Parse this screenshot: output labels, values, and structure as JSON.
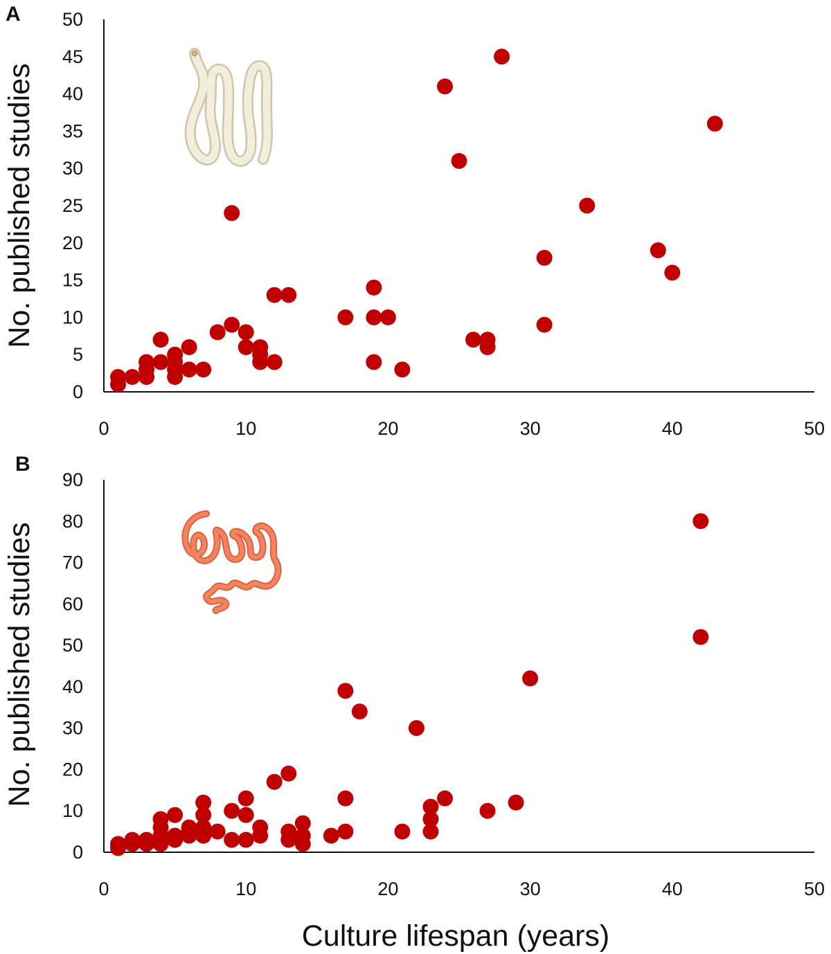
{
  "figure": {
    "xlabel": "Culture lifespan (years)",
    "ylabel": "No. published studies",
    "point_color": "#C00000"
  },
  "chart_data": [
    {
      "panel": "A",
      "type": "scatter",
      "xlabel": "",
      "ylabel": "No. published studies",
      "xlim": [
        0,
        50
      ],
      "ylim": [
        0,
        50
      ],
      "xticks": [
        0,
        10,
        20,
        30,
        40,
        50
      ],
      "yticks": [
        0,
        5,
        10,
        15,
        20,
        25,
        30,
        35,
        40,
        45,
        50
      ],
      "icon": "tapeworm-icon",
      "icon_color": "#F3EEDC",
      "grid": false,
      "points": [
        {
          "x": 1,
          "y": 1
        },
        {
          "x": 1,
          "y": 2
        },
        {
          "x": 2,
          "y": 2
        },
        {
          "x": 3,
          "y": 2
        },
        {
          "x": 3,
          "y": 3
        },
        {
          "x": 3,
          "y": 4
        },
        {
          "x": 4,
          "y": 4
        },
        {
          "x": 4,
          "y": 7
        },
        {
          "x": 5,
          "y": 2
        },
        {
          "x": 5,
          "y": 3
        },
        {
          "x": 5,
          "y": 4
        },
        {
          "x": 5,
          "y": 5
        },
        {
          "x": 6,
          "y": 3
        },
        {
          "x": 6,
          "y": 6
        },
        {
          "x": 7,
          "y": 3
        },
        {
          "x": 8,
          "y": 8
        },
        {
          "x": 9,
          "y": 9
        },
        {
          "x": 9,
          "y": 24
        },
        {
          "x": 10,
          "y": 6
        },
        {
          "x": 10,
          "y": 8
        },
        {
          "x": 11,
          "y": 4
        },
        {
          "x": 11,
          "y": 5
        },
        {
          "x": 11,
          "y": 6
        },
        {
          "x": 12,
          "y": 4
        },
        {
          "x": 12,
          "y": 13
        },
        {
          "x": 13,
          "y": 13
        },
        {
          "x": 17,
          "y": 10
        },
        {
          "x": 19,
          "y": 4
        },
        {
          "x": 19,
          "y": 10
        },
        {
          "x": 19,
          "y": 14
        },
        {
          "x": 20,
          "y": 10
        },
        {
          "x": 21,
          "y": 3
        },
        {
          "x": 24,
          "y": 41
        },
        {
          "x": 25,
          "y": 31
        },
        {
          "x": 26,
          "y": 7
        },
        {
          "x": 27,
          "y": 6
        },
        {
          "x": 27,
          "y": 7
        },
        {
          "x": 28,
          "y": 45
        },
        {
          "x": 31,
          "y": 9
        },
        {
          "x": 31,
          "y": 18
        },
        {
          "x": 34,
          "y": 25
        },
        {
          "x": 39,
          "y": 19
        },
        {
          "x": 40,
          "y": 16
        },
        {
          "x": 43,
          "y": 36
        }
      ]
    },
    {
      "panel": "B",
      "type": "scatter",
      "xlabel": "Culture lifespan (years)",
      "ylabel": "No. published studies",
      "xlim": [
        0,
        50
      ],
      "ylim": [
        0,
        90
      ],
      "xticks": [
        0,
        10,
        20,
        30,
        40,
        50
      ],
      "yticks": [
        0,
        10,
        20,
        30,
        40,
        50,
        60,
        70,
        80,
        90
      ],
      "icon": "roundworm-icon",
      "icon_color": "#F4845F",
      "grid": false,
      "points": [
        {
          "x": 1,
          "y": 1
        },
        {
          "x": 1,
          "y": 2
        },
        {
          "x": 2,
          "y": 2
        },
        {
          "x": 2,
          "y": 3
        },
        {
          "x": 3,
          "y": 2
        },
        {
          "x": 3,
          "y": 3
        },
        {
          "x": 4,
          "y": 2
        },
        {
          "x": 4,
          "y": 3
        },
        {
          "x": 4,
          "y": 4
        },
        {
          "x": 4,
          "y": 6
        },
        {
          "x": 4,
          "y": 8
        },
        {
          "x": 5,
          "y": 3
        },
        {
          "x": 5,
          "y": 4
        },
        {
          "x": 5,
          "y": 9
        },
        {
          "x": 6,
          "y": 4
        },
        {
          "x": 6,
          "y": 5
        },
        {
          "x": 6,
          "y": 6
        },
        {
          "x": 7,
          "y": 4
        },
        {
          "x": 7,
          "y": 6
        },
        {
          "x": 7,
          "y": 9
        },
        {
          "x": 7,
          "y": 12
        },
        {
          "x": 8,
          "y": 5
        },
        {
          "x": 9,
          "y": 3
        },
        {
          "x": 9,
          "y": 10
        },
        {
          "x": 10,
          "y": 3
        },
        {
          "x": 10,
          "y": 9
        },
        {
          "x": 10,
          "y": 13
        },
        {
          "x": 11,
          "y": 4
        },
        {
          "x": 11,
          "y": 6
        },
        {
          "x": 12,
          "y": 17
        },
        {
          "x": 13,
          "y": 3
        },
        {
          "x": 13,
          "y": 5
        },
        {
          "x": 13,
          "y": 19
        },
        {
          "x": 14,
          "y": 2
        },
        {
          "x": 14,
          "y": 4
        },
        {
          "x": 14,
          "y": 7
        },
        {
          "x": 16,
          "y": 4
        },
        {
          "x": 17,
          "y": 5
        },
        {
          "x": 17,
          "y": 13
        },
        {
          "x": 17,
          "y": 39
        },
        {
          "x": 18,
          "y": 34
        },
        {
          "x": 21,
          "y": 5
        },
        {
          "x": 22,
          "y": 30
        },
        {
          "x": 23,
          "y": 5
        },
        {
          "x": 23,
          "y": 8
        },
        {
          "x": 23,
          "y": 11
        },
        {
          "x": 24,
          "y": 13
        },
        {
          "x": 27,
          "y": 10
        },
        {
          "x": 29,
          "y": 12
        },
        {
          "x": 30,
          "y": 42
        },
        {
          "x": 42,
          "y": 52
        },
        {
          "x": 42,
          "y": 80
        }
      ]
    }
  ]
}
